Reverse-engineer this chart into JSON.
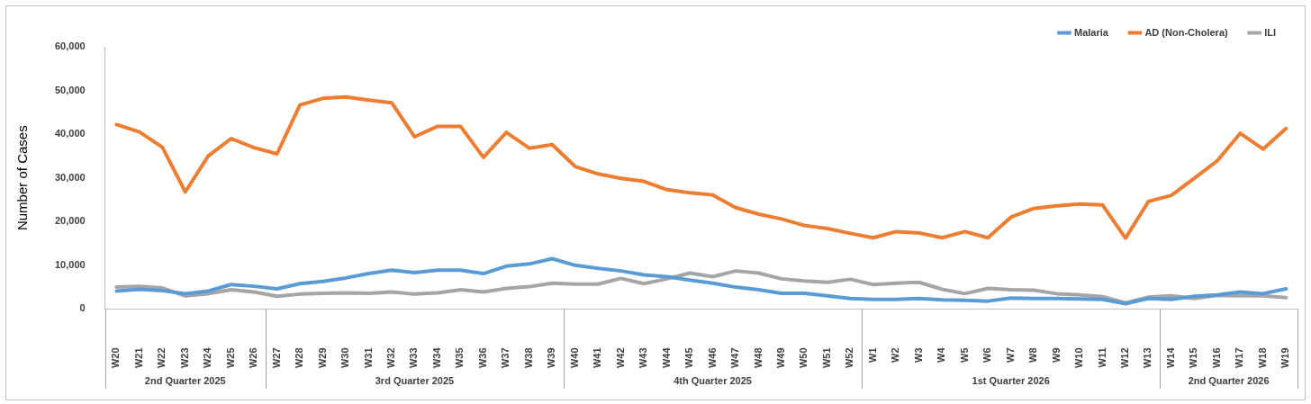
{
  "chart_data": {
    "type": "line",
    "ylabel": "Number of Cases",
    "categories": [
      "W20",
      "W21",
      "W22",
      "W23",
      "W24",
      "W25",
      "W26",
      "W27",
      "W28",
      "W29",
      "W30",
      "W31",
      "W32",
      "W33",
      "W34",
      "W35",
      "W36",
      "W37",
      "W38",
      "W39",
      "W40",
      "W41",
      "W42",
      "W43",
      "W44",
      "W45",
      "W46",
      "W47",
      "W48",
      "W49",
      "W50",
      "W51",
      "W52",
      "W1",
      "W2",
      "W3",
      "W4",
      "W5",
      "W6",
      "W7",
      "W8",
      "W9",
      "W10",
      "W11",
      "W12",
      "W13",
      "W14",
      "W15",
      "W16",
      "W17",
      "W18",
      "W19"
    ],
    "series": [
      {
        "name": "Malaria",
        "color": "#5b9bd5",
        "values": [
          4100,
          4500,
          4200,
          3500,
          4100,
          5600,
          5200,
          4600,
          5800,
          6300,
          7100,
          8100,
          8900,
          8300,
          8900,
          8900,
          8100,
          9800,
          10300,
          11500,
          10000,
          9300,
          8700,
          7800,
          7400,
          6600,
          5900,
          5000,
          4400,
          3600,
          3600,
          3000,
          2400,
          2200,
          2200,
          2400,
          2100,
          2000,
          1800,
          2500,
          2400,
          2400,
          2300,
          2200,
          1200,
          2400,
          2200,
          2900,
          3200,
          3900,
          3500,
          4600
        ]
      },
      {
        "name": "AD (Non-Cholera)",
        "color": "#ed7d31",
        "values": [
          42200,
          40500,
          37000,
          26800,
          35000,
          39000,
          36900,
          35500,
          46700,
          48200,
          48500,
          47800,
          47200,
          39400,
          41800,
          41800,
          34700,
          40400,
          36800,
          37600,
          32600,
          30900,
          29900,
          29200,
          27300,
          26600,
          26100,
          23200,
          21700,
          20600,
          19100,
          18400,
          17300,
          16300,
          17700,
          17400,
          16300,
          17700,
          16300,
          21000,
          23000,
          23600,
          24000,
          23800,
          16200,
          24600,
          26000,
          29900,
          33900,
          40200,
          36600,
          41300
        ]
      },
      {
        "name": "ILI",
        "color": "#a5a5a5",
        "values": [
          5000,
          5200,
          4800,
          3000,
          3500,
          4400,
          3900,
          2900,
          3400,
          3600,
          3700,
          3600,
          3900,
          3400,
          3700,
          4400,
          3900,
          4700,
          5100,
          5900,
          5700,
          5700,
          7000,
          5800,
          6900,
          8200,
          7400,
          8700,
          8200,
          6900,
          6400,
          6100,
          6800,
          5600,
          5900,
          6100,
          4500,
          3500,
          4700,
          4400,
          4300,
          3500,
          3200,
          2800,
          1400,
          2700,
          3000,
          2400,
          3100,
          3000,
          3000,
          2600
        ]
      }
    ],
    "annotations": [
      "2nd Quarter 2025",
      "3rd Quarter 2025",
      "4th Quarter 2025",
      "1st Quarter 2026",
      "2nd Quarter 2026"
    ],
    "ylim": [
      0,
      60000
    ],
    "yticks": [
      0,
      {
        "value": 10000,
        "label": "10,000"
      },
      {
        "value": 20000,
        "label": "20,000"
      },
      {
        "value": 30000,
        "label": "30,000"
      },
      {
        "value": 40000,
        "label": "40,000"
      },
      {
        "value": 50000,
        "label": "50,000"
      },
      {
        "value": 60000,
        "label": "60,000"
      }
    ],
    "grid": false,
    "legend": "top right",
    "marker": "none",
    "line_style": "solid"
  }
}
